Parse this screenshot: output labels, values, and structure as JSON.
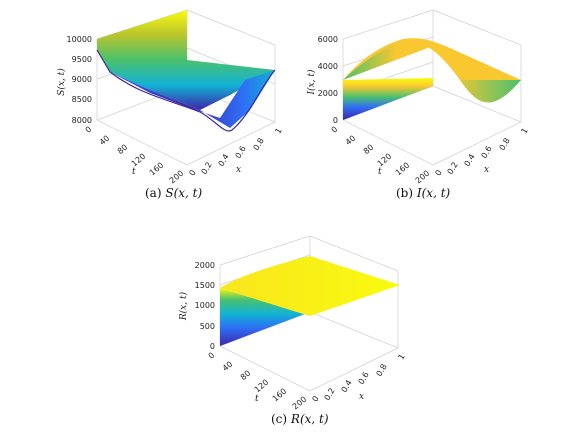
{
  "chart_data": [
    {
      "type": "surface",
      "panel": "a",
      "caption_tag": "(a)",
      "caption_math": "S(x, t)",
      "zlabel": "S(x, t)",
      "xlabel": "x",
      "tlabel": "t",
      "t_ticks": [
        "0",
        "40",
        "80",
        "120",
        "160",
        "200"
      ],
      "x_ticks": [
        "0",
        "0.2",
        "0.4",
        "0.6",
        "0.8",
        "1"
      ],
      "z_ticks": [
        "8000",
        "8500",
        "9000",
        "9500",
        "10000"
      ],
      "zlim": [
        8000,
        10000
      ],
      "xlim": [
        0,
        1
      ],
      "tlim": [
        0,
        200
      ],
      "colormap": [
        "#3e26a8",
        "#2f6cf6",
        "#12b2d4",
        "#4ac16d",
        "#b9c42d",
        "#f9c730",
        "#f9fb0e"
      ],
      "surface": {
        "x": [
          0,
          0.2,
          0.4,
          0.6,
          0.8,
          1
        ],
        "t": [
          0,
          40,
          80,
          120,
          160,
          200
        ],
        "z_by_t": [
          [
            10000,
            10000,
            10000,
            10000,
            10000,
            10000
          ],
          [
            9100,
            9100,
            9100,
            9100,
            9100,
            9100
          ],
          [
            8600,
            8600,
            8600,
            8600,
            8600,
            8600
          ],
          [
            8300,
            8300,
            8300,
            8300,
            8300,
            8300
          ],
          [
            8100,
            8100,
            8100,
            8100,
            8100,
            8100
          ],
          [
            8000,
            8000,
            8000,
            8000,
            8000,
            8000
          ]
        ]
      }
    },
    {
      "type": "surface",
      "panel": "b",
      "caption_tag": "(b)",
      "caption_math": "I(x, t)",
      "zlabel": "I(x, t)",
      "xlabel": "x",
      "tlabel": "t",
      "t_ticks": [
        "0",
        "40",
        "80",
        "120",
        "160",
        "200"
      ],
      "x_ticks": [
        "0",
        "0.2",
        "0.4",
        "0.6",
        "0.8",
        "1"
      ],
      "z_ticks": [
        "0",
        "2000",
        "4000",
        "6000"
      ],
      "zlim": [
        0,
        6000
      ],
      "xlim": [
        0,
        1
      ],
      "tlim": [
        0,
        200
      ],
      "colormap": [
        "#3e26a8",
        "#2f6cf6",
        "#12b2d4",
        "#4ac16d",
        "#b9c42d",
        "#f9c730",
        "#f9fb0e"
      ],
      "surface": {
        "x": [
          0,
          0.2,
          0.4,
          0.6,
          0.8,
          1
        ],
        "t": [
          0,
          40,
          80,
          120,
          160,
          200
        ],
        "z_by_t": [
          [
            0,
            0,
            0,
            0,
            0,
            0
          ],
          [
            2500,
            2500,
            2500,
            2500,
            2500,
            2500
          ],
          [
            4800,
            4800,
            4800,
            4800,
            4800,
            4800
          ],
          [
            5500,
            5500,
            5500,
            5500,
            5500,
            5500
          ],
          [
            4600,
            4600,
            4600,
            4600,
            4600,
            4600
          ],
          [
            3800,
            3800,
            3800,
            3800,
            3800,
            3800
          ]
        ]
      }
    },
    {
      "type": "surface",
      "panel": "c",
      "caption_tag": "(c)",
      "caption_math": "R(x, t)",
      "zlabel": "R(x, t)",
      "xlabel": "x",
      "tlabel": "t",
      "t_ticks": [
        "0",
        "40",
        "80",
        "120",
        "160",
        "200"
      ],
      "x_ticks": [
        "0",
        "0.2",
        "0.4",
        "0.6",
        "0.8",
        "1"
      ],
      "z_ticks": [
        "0",
        "500",
        "1000",
        "1500",
        "2000"
      ],
      "zlim": [
        0,
        2000
      ],
      "xlim": [
        0,
        1
      ],
      "tlim": [
        0,
        200
      ],
      "colormap": [
        "#3e26a8",
        "#2f6cf6",
        "#12b2d4",
        "#4ac16d",
        "#b9c42d",
        "#f9c730",
        "#f9fb0e"
      ],
      "surface": {
        "x": [
          0,
          0.2,
          0.4,
          0.6,
          0.8,
          1
        ],
        "t": [
          0,
          40,
          80,
          120,
          160,
          200
        ],
        "z_by_t": [
          [
            0,
            0,
            0,
            0,
            0,
            0
          ],
          [
            1400,
            1400,
            1400,
            1400,
            1400,
            1400
          ],
          [
            1700,
            1700,
            1700,
            1700,
            1700,
            1700
          ],
          [
            1850,
            1850,
            1850,
            1850,
            1850,
            1850
          ],
          [
            1950,
            1950,
            1950,
            1950,
            1950,
            1950
          ],
          [
            2000,
            2000,
            2000,
            2000,
            2000,
            2000
          ]
        ]
      }
    }
  ]
}
